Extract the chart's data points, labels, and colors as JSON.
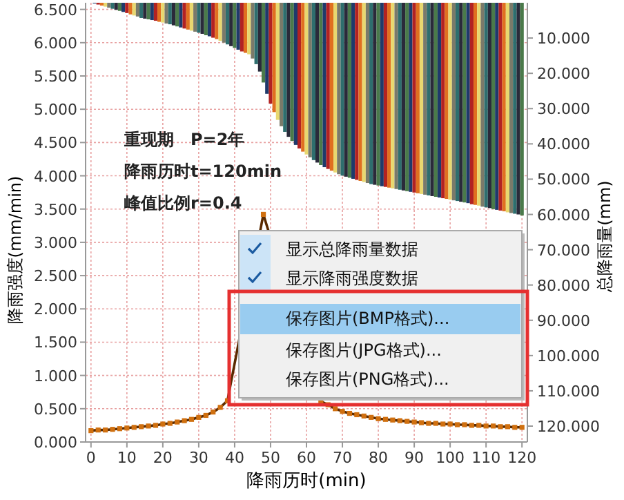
{
  "chart_data": {
    "type": "bar",
    "xlabel": "降雨历时(min)",
    "ylabel": "降雨强度(mm/min)",
    "y2label": "总降雨量(mm)",
    "annotations": [
      "重现期　P=2年",
      "降雨历时t=120min",
      "峰值比例r=0.4",
      "显示总降雨量数据",
      "显示降雨强度数据",
      "保存图片(BMP格式)...",
      "保存图片(JPG格式)...",
      "保存图片(PNG格式)..."
    ],
    "xlim": [
      -1.5,
      121.5
    ],
    "xticks": [
      0,
      10,
      20,
      30,
      40,
      50,
      60,
      70,
      80,
      90,
      100,
      110,
      120
    ],
    "ylim": [
      0,
      6.6
    ],
    "yticks": [
      {
        "value": 0,
        "label": "0.000"
      },
      {
        "value": 0.5,
        "label": "0.500"
      },
      {
        "value": 1,
        "label": "1.000"
      },
      {
        "value": 1.5,
        "label": "1.500"
      },
      {
        "value": 2,
        "label": "2.000"
      },
      {
        "value": 2.5,
        "label": "2.500"
      },
      {
        "value": 3,
        "label": "3.000"
      },
      {
        "value": 3.5,
        "label": "3.500"
      },
      {
        "value": 4,
        "label": "4.000"
      },
      {
        "value": 4.5,
        "label": "4.500"
      },
      {
        "value": 5,
        "label": "5.000"
      },
      {
        "value": 5.5,
        "label": "5.500"
      },
      {
        "value": 6,
        "label": "6.000"
      },
      {
        "value": 6.5,
        "label": "6.500"
      }
    ],
    "y2lim": [
      124.5,
      0
    ],
    "y2ticks": [
      {
        "value": 10,
        "label": "10.000"
      },
      {
        "value": 20,
        "label": "20.000"
      },
      {
        "value": 30,
        "label": "30.000"
      },
      {
        "value": 40,
        "label": "40.000"
      },
      {
        "value": 50,
        "label": "50.000"
      },
      {
        "value": 60,
        "label": "60.000"
      },
      {
        "value": 70,
        "label": "70.000"
      },
      {
        "value": 80,
        "label": "80.000"
      },
      {
        "value": 90,
        "label": "90.000"
      },
      {
        "value": 100,
        "label": "100.000"
      },
      {
        "value": 110,
        "label": "110.000"
      },
      {
        "value": 120,
        "label": "120.000"
      }
    ],
    "grid": true,
    "series": [
      {
        "axis": "y2",
        "x": [
          1,
          2,
          3,
          4,
          5,
          6,
          7,
          8,
          9,
          10,
          11,
          12,
          13,
          14,
          15,
          16,
          17,
          18,
          19,
          20,
          21,
          22,
          23,
          24,
          25,
          26,
          27,
          28,
          29,
          30,
          31,
          32,
          33,
          34,
          35,
          36,
          37,
          38,
          39,
          40,
          41,
          42,
          43,
          44,
          45,
          46,
          47,
          48,
          49,
          50,
          51,
          52,
          53,
          54,
          55,
          56,
          57,
          58,
          59,
          60,
          61,
          62,
          63,
          64,
          65,
          66,
          67,
          68,
          69,
          70,
          71,
          72,
          73,
          74,
          75,
          76,
          77,
          78,
          79,
          80,
          81,
          82,
          83,
          84,
          85,
          86,
          87,
          88,
          89,
          90,
          91,
          92,
          93,
          94,
          95,
          96,
          97,
          98,
          99,
          100,
          101,
          102,
          103,
          104,
          105,
          106,
          107,
          108,
          109,
          110,
          111,
          112,
          113,
          114,
          115,
          116,
          117,
          118,
          119,
          120
        ],
        "values": [
          0.2,
          0.5,
          0.8,
          1.1,
          1.4,
          1.7,
          2.0,
          2.3,
          2.6,
          2.9,
          3.3,
          3.6,
          3.9,
          4.3,
          4.5,
          4.7,
          4.9,
          5.1,
          5.4,
          5.6,
          5.9,
          6.1,
          6.4,
          6.7,
          7.0,
          7.3,
          7.6,
          7.9,
          8.2,
          8.5,
          8.8,
          9.2,
          9.5,
          9.9,
          10.3,
          10.8,
          11.3,
          11.8,
          12.3,
          12.8,
          13.3,
          13.8,
          14.2,
          14.6,
          15.8,
          17.4,
          19.5,
          22.6,
          25.8,
          28.6,
          31.0,
          33.2,
          35.0,
          36.6,
          38.0,
          39.2,
          40.3,
          41.3,
          42.2,
          43.0,
          43.8,
          44.6,
          45.3,
          46.0,
          46.6,
          47.1,
          47.6,
          48.1,
          48.6,
          49.0,
          49.3,
          49.6,
          49.9,
          50.2,
          50.5,
          50.8,
          51.1,
          51.4,
          51.6,
          51.8,
          52.0,
          52.2,
          52.4,
          52.6,
          52.8,
          53.0,
          53.2,
          53.4,
          53.6,
          53.8,
          54.0,
          54.2,
          54.4,
          54.6,
          54.8,
          55.0,
          55.2,
          55.4,
          55.6,
          55.8,
          56.0,
          56.2,
          56.4,
          56.6,
          56.8,
          57.1,
          57.3,
          57.5,
          57.8,
          58.0,
          58.2,
          58.5,
          58.7,
          58.9,
          59.1,
          59.4,
          59.6,
          59.8,
          60.0,
          60.3
        ],
        "colors": [
          "#1f3a6b",
          "#b22222",
          "#e07020",
          "#e8d870",
          "#7a7a6a",
          "#2e6e6e",
          "#2a2a3a",
          "#4a7a4a",
          "#1f3a6b",
          "#b22222",
          "#e07020",
          "#e8d870",
          "#7a7a6a",
          "#2e6e6e",
          "#2a2a3a",
          "#4a7a4a",
          "#1f3a6b",
          "#b22222",
          "#e07020",
          "#e8d870",
          "#7a7a6a",
          "#2e6e6e",
          "#2a2a3a",
          "#4a7a4a",
          "#1f3a6b",
          "#b22222",
          "#e07020",
          "#e8d870",
          "#7a7a6a",
          "#2e6e6e",
          "#2a2a3a",
          "#4a7a4a",
          "#1f3a6b",
          "#b22222",
          "#e07020",
          "#e8d870",
          "#7a7a6a",
          "#2e6e6e",
          "#2a2a3a",
          "#4a7a4a",
          "#1f3a6b",
          "#b22222",
          "#e07020",
          "#e8d870",
          "#7a7a6a",
          "#2e6e6e",
          "#2a2a3a",
          "#4a7a4a",
          "#1f3a6b",
          "#b22222",
          "#e07020",
          "#e8d870",
          "#7a7a6a",
          "#2e6e6e",
          "#2a2a3a",
          "#4a7a4a",
          "#1f3a6b",
          "#b22222",
          "#e07020",
          "#e8d870",
          "#7a7a6a",
          "#2e6e6e",
          "#2a2a3a",
          "#4a7a4a",
          "#1f3a6b",
          "#b22222",
          "#e07020",
          "#e8d870",
          "#7a7a6a",
          "#2e6e6e",
          "#2a2a3a",
          "#4a7a4a",
          "#1f3a6b",
          "#b22222",
          "#e07020",
          "#e8d870",
          "#7a7a6a",
          "#2e6e6e",
          "#2a2a3a",
          "#4a7a4a",
          "#1f3a6b",
          "#b22222",
          "#e07020",
          "#e8d870",
          "#7a7a6a",
          "#2e6e6e",
          "#2a2a3a",
          "#4a7a4a",
          "#1f3a6b",
          "#b22222",
          "#e07020",
          "#e8d870",
          "#7a7a6a",
          "#2e6e6e",
          "#2a2a3a",
          "#4a7a4a",
          "#1f3a6b",
          "#b22222",
          "#e07020",
          "#e8d870",
          "#7a7a6a",
          "#2e6e6e",
          "#2a2a3a",
          "#4a7a4a",
          "#1f3a6b",
          "#b22222",
          "#e07020",
          "#e8d870",
          "#7a7a6a",
          "#2e6e6e",
          "#2a2a3a",
          "#4a7a4a",
          "#1f3a6b",
          "#b22222",
          "#e07020",
          "#e8d870",
          "#7a7a6a",
          "#2e6e6e",
          "#2a2a3a",
          "#4a7a4a"
        ]
      },
      {
        "type": "line",
        "color": "#d07010",
        "marker": "square",
        "line_style": "solid",
        "x": [
          0,
          2,
          4,
          6,
          8,
          10,
          12,
          14,
          16,
          18,
          20,
          22,
          24,
          26,
          28,
          30,
          32,
          34,
          36,
          38,
          48,
          64,
          66,
          68,
          70,
          72,
          74,
          76,
          78,
          80,
          82,
          84,
          86,
          88,
          90,
          92,
          94,
          96,
          98,
          100,
          102,
          104,
          106,
          108,
          110,
          112,
          114,
          116,
          118,
          120
        ],
        "values": [
          0.17,
          0.18,
          0.18,
          0.19,
          0.2,
          0.21,
          0.22,
          0.23,
          0.24,
          0.25,
          0.27,
          0.28,
          0.3,
          0.32,
          0.34,
          0.37,
          0.4,
          0.45,
          0.52,
          0.62,
          3.42,
          0.61,
          0.56,
          0.5,
          0.46,
          0.43,
          0.41,
          0.39,
          0.37,
          0.35,
          0.34,
          0.33,
          0.32,
          0.31,
          0.3,
          0.29,
          0.28,
          0.28,
          0.27,
          0.27,
          0.26,
          0.26,
          0.25,
          0.25,
          0.24,
          0.24,
          0.23,
          0.23,
          0.22,
          0.22
        ]
      }
    ]
  }
}
